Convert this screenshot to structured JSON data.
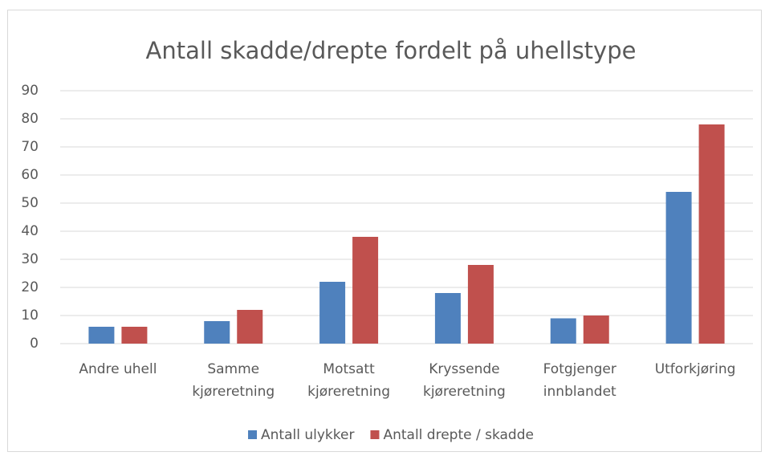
{
  "chart_data": {
    "type": "bar",
    "title": "Antall skadde/drepte fordelt på uhellstype",
    "categories": [
      "Andre uhell",
      "Samme kjøreretning",
      "Motsatt kjøreretning",
      "Kryssende kjøreretning",
      "Fotgjenger innblandet",
      "Utforkjøring"
    ],
    "series": [
      {
        "name": "Antall ulykker",
        "color": "#4f81bd",
        "values": [
          6,
          8,
          22,
          18,
          9,
          54
        ]
      },
      {
        "name": "Antall drepte / skadde",
        "color": "#c0504d",
        "values": [
          6,
          12,
          38,
          28,
          10,
          78
        ]
      }
    ],
    "ylim": [
      0,
      90
    ],
    "yticks": [
      0,
      10,
      20,
      30,
      40,
      50,
      60,
      70,
      80,
      90
    ],
    "grid": true,
    "legend": "bottom"
  }
}
